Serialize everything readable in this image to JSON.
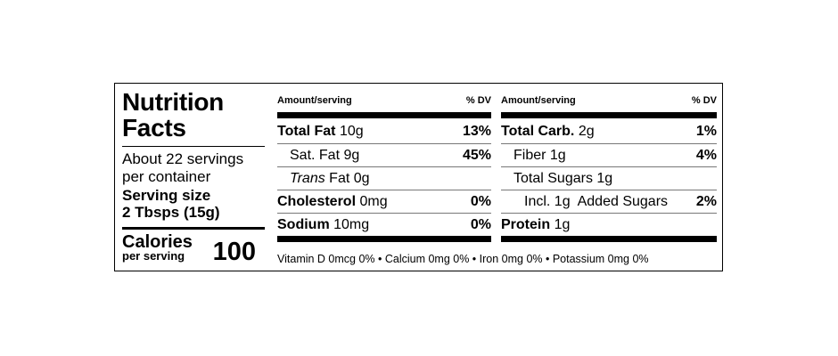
{
  "title_line1": "Nutrition",
  "title_line2": "Facts",
  "servings_line1": "About 22 servings",
  "servings_line2": "per container",
  "serving_size_label": "Serving size",
  "serving_size_value": "2 Tbsps (15g)",
  "calories_label": "Calories",
  "calories_sub": "per serving",
  "calories_value": "100",
  "column_header_left": "Amount/serving",
  "column_header_right": "% DV",
  "left_column": [
    {
      "name": "Total Fat",
      "amount": "10g",
      "dv": "13%"
    },
    {
      "name": "Sat. Fat",
      "amount": "9g",
      "dv": "45%"
    },
    {
      "name_italic": "Trans",
      "name": "Fat",
      "amount": "0g",
      "dv": ""
    },
    {
      "name": "Cholesterol",
      "amount": "0mg",
      "dv": "0%"
    },
    {
      "name": "Sodium",
      "amount": "10mg",
      "dv": "0%"
    }
  ],
  "right_column": [
    {
      "name": "Total Carb.",
      "amount": "2g",
      "dv": "1%"
    },
    {
      "name": "Fiber",
      "amount": "1g",
      "dv": "4%"
    },
    {
      "name": "Total Sugars",
      "amount": "1g",
      "dv": ""
    },
    {
      "prefix": "Incl.",
      "amount": "1g",
      "name": "Added Sugars",
      "dv": "2%"
    },
    {
      "name": "Protein",
      "amount": "1g",
      "dv": ""
    }
  ],
  "footer": "Vitamin D 0mcg 0% • Calcium 0mg 0% • Iron 0mg 0% • Potassium 0mg 0%"
}
